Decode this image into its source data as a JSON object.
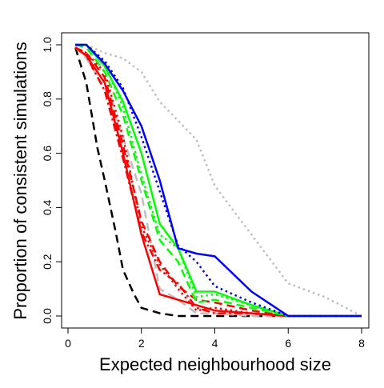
{
  "chart_data": {
    "type": "line",
    "title": "",
    "xlabel": "Expected neighbourhood size",
    "ylabel": "Proportion of consistent simulations",
    "xlim": [
      0,
      8
    ],
    "ylim": [
      0,
      1
    ],
    "xticks": [
      "0",
      "2",
      "4",
      "6",
      "8"
    ],
    "yticks": [
      "0.0",
      "0.2",
      "0.4",
      "0.6",
      "0.8",
      "1.0"
    ],
    "grid": false,
    "legend": "none",
    "series": [
      {
        "color": "#000000",
        "dash": "dashed",
        "x": [
          0.2,
          0.5,
          0.8,
          1.0,
          1.3,
          1.5,
          1.8,
          2.0,
          2.5,
          3.0,
          3.5,
          4.0,
          5.0,
          6.0,
          8.0
        ],
        "y": [
          0.99,
          0.86,
          0.62,
          0.5,
          0.31,
          0.17,
          0.08,
          0.03,
          0.01,
          0.0,
          0.0,
          0.0,
          0.0,
          0.0,
          0.0
        ]
      },
      {
        "color": "#bebebe",
        "dash": "dotted",
        "x": [
          0.2,
          0.5,
          1.0,
          1.5,
          2.0,
          2.5,
          3.0,
          3.5,
          4.0,
          5.0,
          6.0,
          7.0,
          8.0
        ],
        "y": [
          1.0,
          1.0,
          0.97,
          0.95,
          0.9,
          0.79,
          0.72,
          0.65,
          0.48,
          0.3,
          0.12,
          0.07,
          0.0
        ]
      },
      {
        "color": "#bebebe",
        "dash": "dashed",
        "x": [
          0.2,
          0.5,
          1.0,
          1.5,
          2.0,
          2.5,
          3.0,
          3.5,
          4.0,
          5.0,
          6.0,
          8.0
        ],
        "y": [
          0.99,
          0.95,
          0.84,
          0.66,
          0.45,
          0.1,
          0.06,
          0.01,
          0.01,
          0.0,
          0.0,
          0.0
        ]
      },
      {
        "color": "#ff0000",
        "dash": "solid",
        "x": [
          0.2,
          0.5,
          1.0,
          1.5,
          2.0,
          2.5,
          3.0,
          3.5,
          4.0,
          5.0,
          6.0,
          8.0
        ],
        "y": [
          0.99,
          0.96,
          0.86,
          0.6,
          0.3,
          0.08,
          0.06,
          0.04,
          0.02,
          0.01,
          0.0,
          0.0
        ]
      },
      {
        "color": "#ff0000",
        "dash": "dashed",
        "x": [
          0.2,
          0.5,
          1.0,
          1.5,
          2.0,
          2.5,
          3.0,
          3.5,
          4.0,
          5.0,
          6.0,
          8.0
        ],
        "y": [
          0.99,
          0.97,
          0.88,
          0.63,
          0.35,
          0.2,
          0.11,
          0.06,
          0.05,
          0.02,
          0.0,
          0.0
        ]
      },
      {
        "color": "#ff0000",
        "dash": "dotted",
        "x": [
          0.2,
          0.5,
          1.0,
          1.5,
          2.0,
          2.5,
          3.0,
          3.5,
          4.0,
          5.0,
          6.0,
          8.0
        ],
        "y": [
          0.99,
          0.97,
          0.9,
          0.66,
          0.33,
          0.19,
          0.1,
          0.02,
          0.03,
          0.01,
          0.0,
          0.0
        ]
      },
      {
        "color": "#ff0000",
        "dash": "dotdash",
        "x": [
          0.2,
          0.5,
          1.0,
          1.5,
          2.0,
          2.5,
          3.0,
          3.5,
          4.0,
          5.0,
          6.0,
          8.0
        ],
        "y": [
          0.99,
          0.96,
          0.83,
          0.58,
          0.31,
          0.17,
          0.12,
          0.03,
          0.01,
          0.01,
          0.0,
          0.0
        ]
      },
      {
        "color": "#00ff00",
        "dash": "solid",
        "x": [
          0.2,
          0.5,
          1.0,
          1.5,
          2.0,
          2.5,
          3.0,
          3.5,
          4.0,
          5.0,
          6.0,
          8.0
        ],
        "y": [
          1.0,
          1.0,
          0.92,
          0.79,
          0.6,
          0.34,
          0.25,
          0.09,
          0.09,
          0.04,
          0.0,
          0.0
        ]
      },
      {
        "color": "#00ff00",
        "dash": "dotted",
        "x": [
          0.2,
          0.5,
          1.0,
          1.5,
          2.0,
          2.5,
          3.0,
          3.5,
          4.0,
          5.0,
          6.0,
          8.0
        ],
        "y": [
          1.0,
          1.0,
          0.93,
          0.77,
          0.52,
          0.3,
          0.25,
          0.07,
          0.08,
          0.04,
          0.0,
          0.0
        ]
      },
      {
        "color": "#00ff00",
        "dash": "dashed",
        "x": [
          0.2,
          0.5,
          1.0,
          1.5,
          2.0,
          2.5,
          3.0,
          3.5,
          4.0,
          5.0,
          6.0,
          8.0
        ],
        "y": [
          1.0,
          0.99,
          0.9,
          0.74,
          0.5,
          0.28,
          0.2,
          0.05,
          0.06,
          0.03,
          0.0,
          0.0
        ]
      },
      {
        "color": "#0000ff",
        "dash": "solid",
        "x": [
          0.2,
          0.5,
          1.0,
          1.5,
          2.0,
          2.5,
          3.0,
          3.5,
          4.0,
          5.0,
          6.0,
          8.0
        ],
        "y": [
          1.0,
          1.0,
          0.93,
          0.83,
          0.7,
          0.5,
          0.25,
          0.23,
          0.22,
          0.09,
          0.0,
          0.0
        ]
      },
      {
        "color": "#0000ff",
        "dash": "dotted",
        "x": [
          0.2,
          0.5,
          1.0,
          1.5,
          2.0,
          2.5,
          3.0,
          3.5,
          4.0,
          5.0,
          6.0,
          8.0
        ],
        "y": [
          1.0,
          1.0,
          0.94,
          0.84,
          0.66,
          0.46,
          0.26,
          0.2,
          0.11,
          0.05,
          0.0,
          0.0
        ]
      }
    ]
  }
}
